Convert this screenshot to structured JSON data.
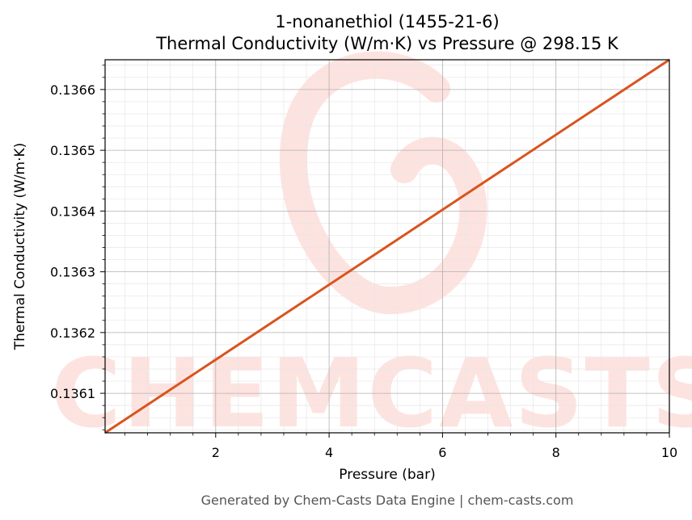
{
  "chart_data": {
    "type": "line",
    "title": "1-nonanethiol (1455-21-6)",
    "subtitle": "Thermal Conductivity (W/m·K) vs Pressure @ 298.15 K",
    "xlabel": "Pressure (bar)",
    "ylabel": "Thermal Conductivity (W/m·K)",
    "xlim": [
      0.05,
      10
    ],
    "ylim": [
      0.136035,
      0.136649
    ],
    "xticks": [
      2,
      4,
      6,
      8,
      10
    ],
    "xtick_labels": [
      "2",
      "4",
      "6",
      "8",
      "10"
    ],
    "yticks": [
      0.1361,
      0.1362,
      0.1363,
      0.1364,
      0.1365,
      0.1366
    ],
    "ytick_labels": [
      "0.1361",
      "0.1362",
      "0.1363",
      "0.1364",
      "0.1365",
      "0.1366"
    ],
    "grid": true,
    "series": [
      {
        "color": "#d9541e",
        "x": [
          0.05,
          10
        ],
        "y": [
          0.136035,
          0.136649
        ]
      }
    ]
  },
  "watermark": {
    "text": "CHEMCASTS"
  },
  "footer": {
    "text": "Generated by Chem-Casts Data Engine | chem-casts.com"
  },
  "colors": {
    "line": "#d9541e",
    "grid_major": "#b0b0b0",
    "grid_minor": "#e6e6e6",
    "watermark": "#fde3e0"
  }
}
